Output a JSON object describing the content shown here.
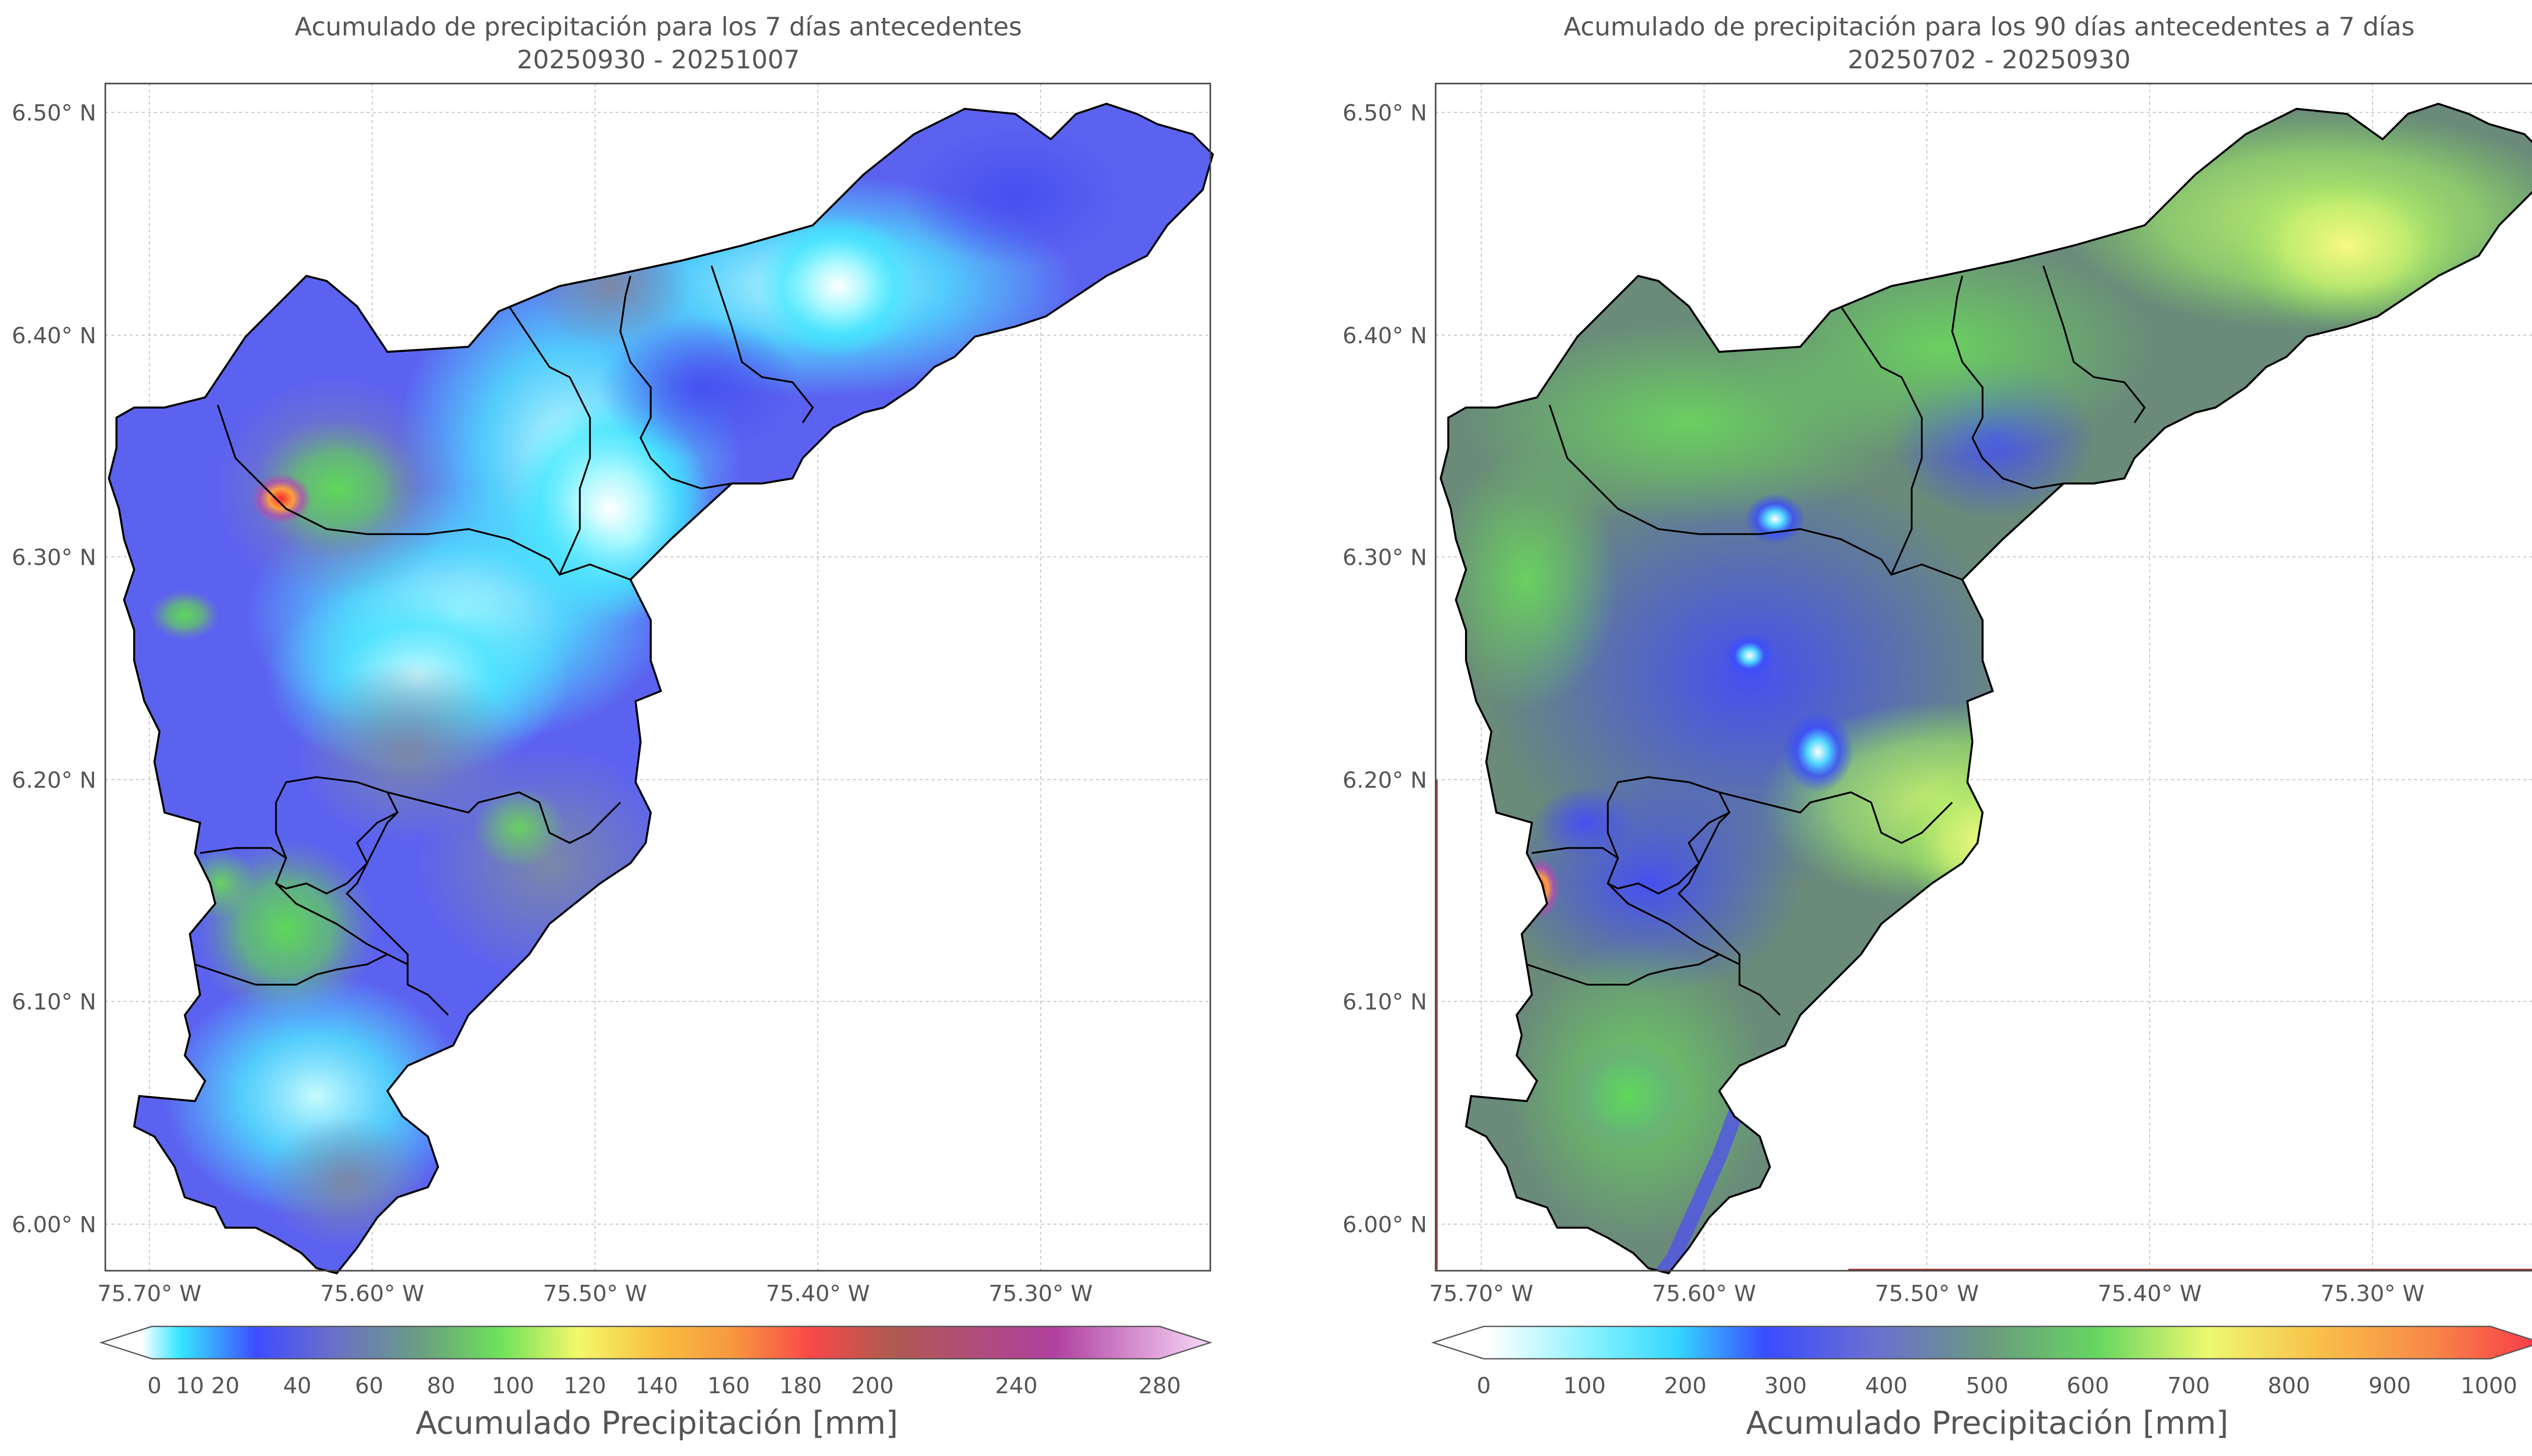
{
  "panels": [
    {
      "title_line1": "Acumulado de precipitación para los 7 días antecedentes",
      "title_line2": "20250930 - 20251007",
      "x_ticks": [
        "75.70° W",
        "75.60° W",
        "75.50° W",
        "75.40° W",
        "75.30° W"
      ],
      "y_ticks": [
        "6.50° N",
        "6.40° N",
        "6.30° N",
        "6.20° N",
        "6.10° N",
        "6.00° N"
      ],
      "colorbar_ticks": [
        "0",
        "10",
        "20",
        "40",
        "60",
        "80",
        "100",
        "120",
        "140",
        "160",
        "180",
        "200",
        "240",
        "280"
      ],
      "colorbar_label": "Acumulado Precipitación [mm]"
    },
    {
      "title_line1": "Acumulado de precipitación para los 90 días antecedentes a 7 días",
      "title_line2": "20250702 - 20250930",
      "x_ticks": [
        "75.70° W",
        "75.60° W",
        "75.50° W",
        "75.40° W",
        "75.30° W"
      ],
      "y_ticks": [
        "6.50° N",
        "6.40° N",
        "6.30° N",
        "6.20° N",
        "6.10° N",
        "6.00° N"
      ],
      "colorbar_ticks": [
        "0",
        "100",
        "200",
        "300",
        "400",
        "500",
        "600",
        "700",
        "800",
        "900",
        "1000"
      ],
      "colorbar_label": "Acumulado Precipitación [mm]"
    }
  ],
  "colors": {
    "frame": "#444444",
    "grid": "#c8c8c8",
    "outline": "#000000",
    "panel1_base": "#5c62f0",
    "panel2_base": "#6a8a7a"
  }
}
